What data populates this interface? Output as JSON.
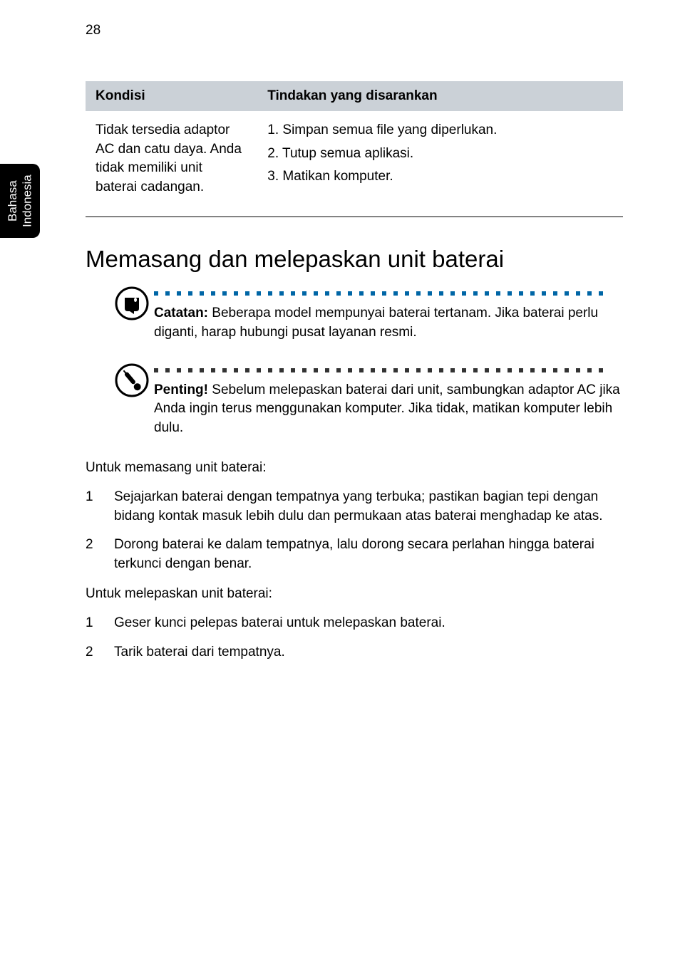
{
  "page_number": "28",
  "side_tab": "Bahasa Indonesia",
  "table": {
    "header_kondisi": "Kondisi",
    "header_tindakan": "Tindakan yang disarankan",
    "row1_kondisi": "Tidak tersedia adaptor AC dan catu daya. Anda tidak memiliki unit baterai cadangan.",
    "row1_tindakan_1": "1. Simpan semua file yang diperlukan.",
    "row1_tindakan_2": "2. Tutup semua aplikasi.",
    "row1_tindakan_3": "3. Matikan komputer."
  },
  "section_title": "Memasang dan melepaskan unit baterai",
  "note1": {
    "label": "Catatan:",
    "text": " Beberapa model mempunyai baterai tertanam. Jika baterai perlu diganti, harap hubungi pusat layanan resmi.",
    "dot_color": "#0066a6"
  },
  "note2": {
    "label": "Penting!",
    "text": " Sebelum melepaskan baterai dari unit, sambungkan adaptor AC jika Anda ingin terus menggunakan komputer. Jika tidak, matikan komputer lebih dulu.",
    "dot_color": "#333333"
  },
  "install_intro": "Untuk memasang unit baterai:",
  "install_items": [
    "Sejajarkan baterai dengan tempatnya yang terbuka; pastikan bagian tepi dengan bidang kontak masuk lebih dulu dan permukaan atas baterai menghadap ke atas.",
    "Dorong baterai ke dalam tempatnya, lalu dorong secara perlahan hingga baterai terkunci dengan benar."
  ],
  "remove_intro": "Untuk melepaskan unit baterai:",
  "remove_items": [
    "Geser kunci pelepas baterai untuk melepaskan baterai.",
    "Tarik baterai dari tempatnya."
  ],
  "colors": {
    "header_bg": "#cbd1d7",
    "text": "#000000",
    "page_bg": "#ffffff"
  }
}
